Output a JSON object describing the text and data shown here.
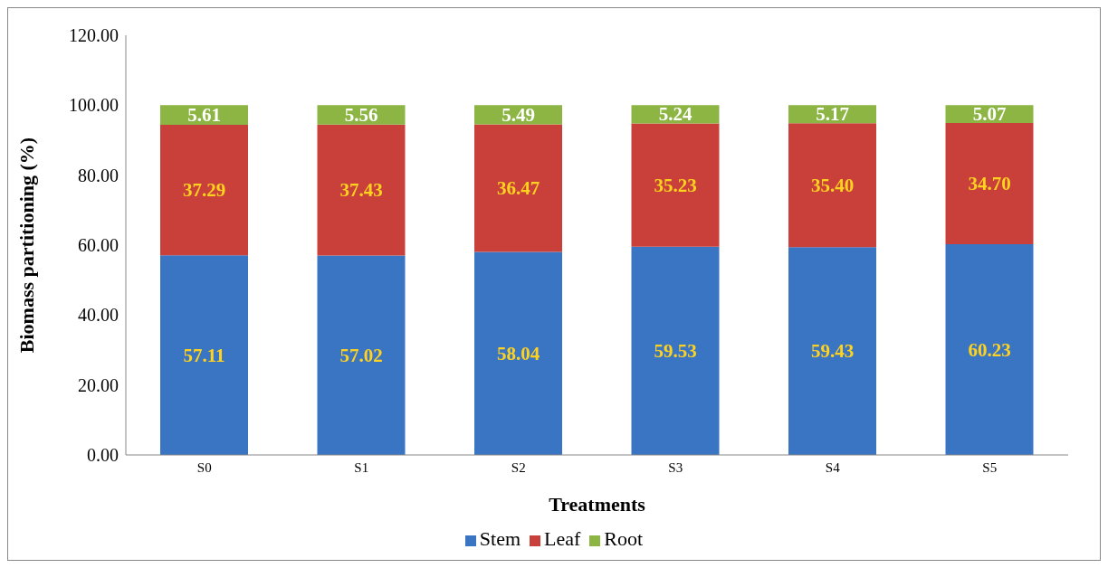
{
  "chart_data": {
    "type": "bar",
    "stacked": true,
    "xlabel": "Treatments",
    "ylabel": "Biomass partitioning (%)",
    "categories": [
      "S0",
      "S1",
      "S2",
      "S3",
      "S4",
      "S5"
    ],
    "series": [
      {
        "name": "Stem",
        "color": "#3a75c4",
        "values": [
          57.11,
          57.02,
          58.04,
          59.53,
          59.43,
          60.23
        ],
        "value_labels": [
          "57.11",
          "57.02",
          "58.04",
          "59.53",
          "59.43",
          "60.23"
        ]
      },
      {
        "name": "Leaf",
        "color": "#c9403b",
        "values": [
          37.29,
          37.43,
          36.47,
          35.23,
          35.4,
          34.7
        ],
        "value_labels": [
          "37.29",
          "37.43",
          "36.47",
          "35.23",
          "35.40",
          "34.70"
        ]
      },
      {
        "name": "Root",
        "color": "#8cb543",
        "values": [
          5.61,
          5.56,
          5.49,
          5.24,
          5.17,
          5.07
        ],
        "value_labels": [
          "5.61",
          "5.56",
          "5.49",
          "5.24",
          "5.17",
          "5.07"
        ]
      }
    ],
    "ylim": [
      0,
      120
    ],
    "yticks": [
      {
        "value": 0,
        "label": "0.00"
      },
      {
        "value": 20,
        "label": "20.00"
      },
      {
        "value": 40,
        "label": "40.00"
      },
      {
        "value": 60,
        "label": "60.00"
      },
      {
        "value": 80,
        "label": "80.00"
      },
      {
        "value": 100,
        "label": "100.00"
      },
      {
        "value": 120,
        "label": "120.00"
      }
    ],
    "grid": false,
    "legend": "bottom"
  }
}
